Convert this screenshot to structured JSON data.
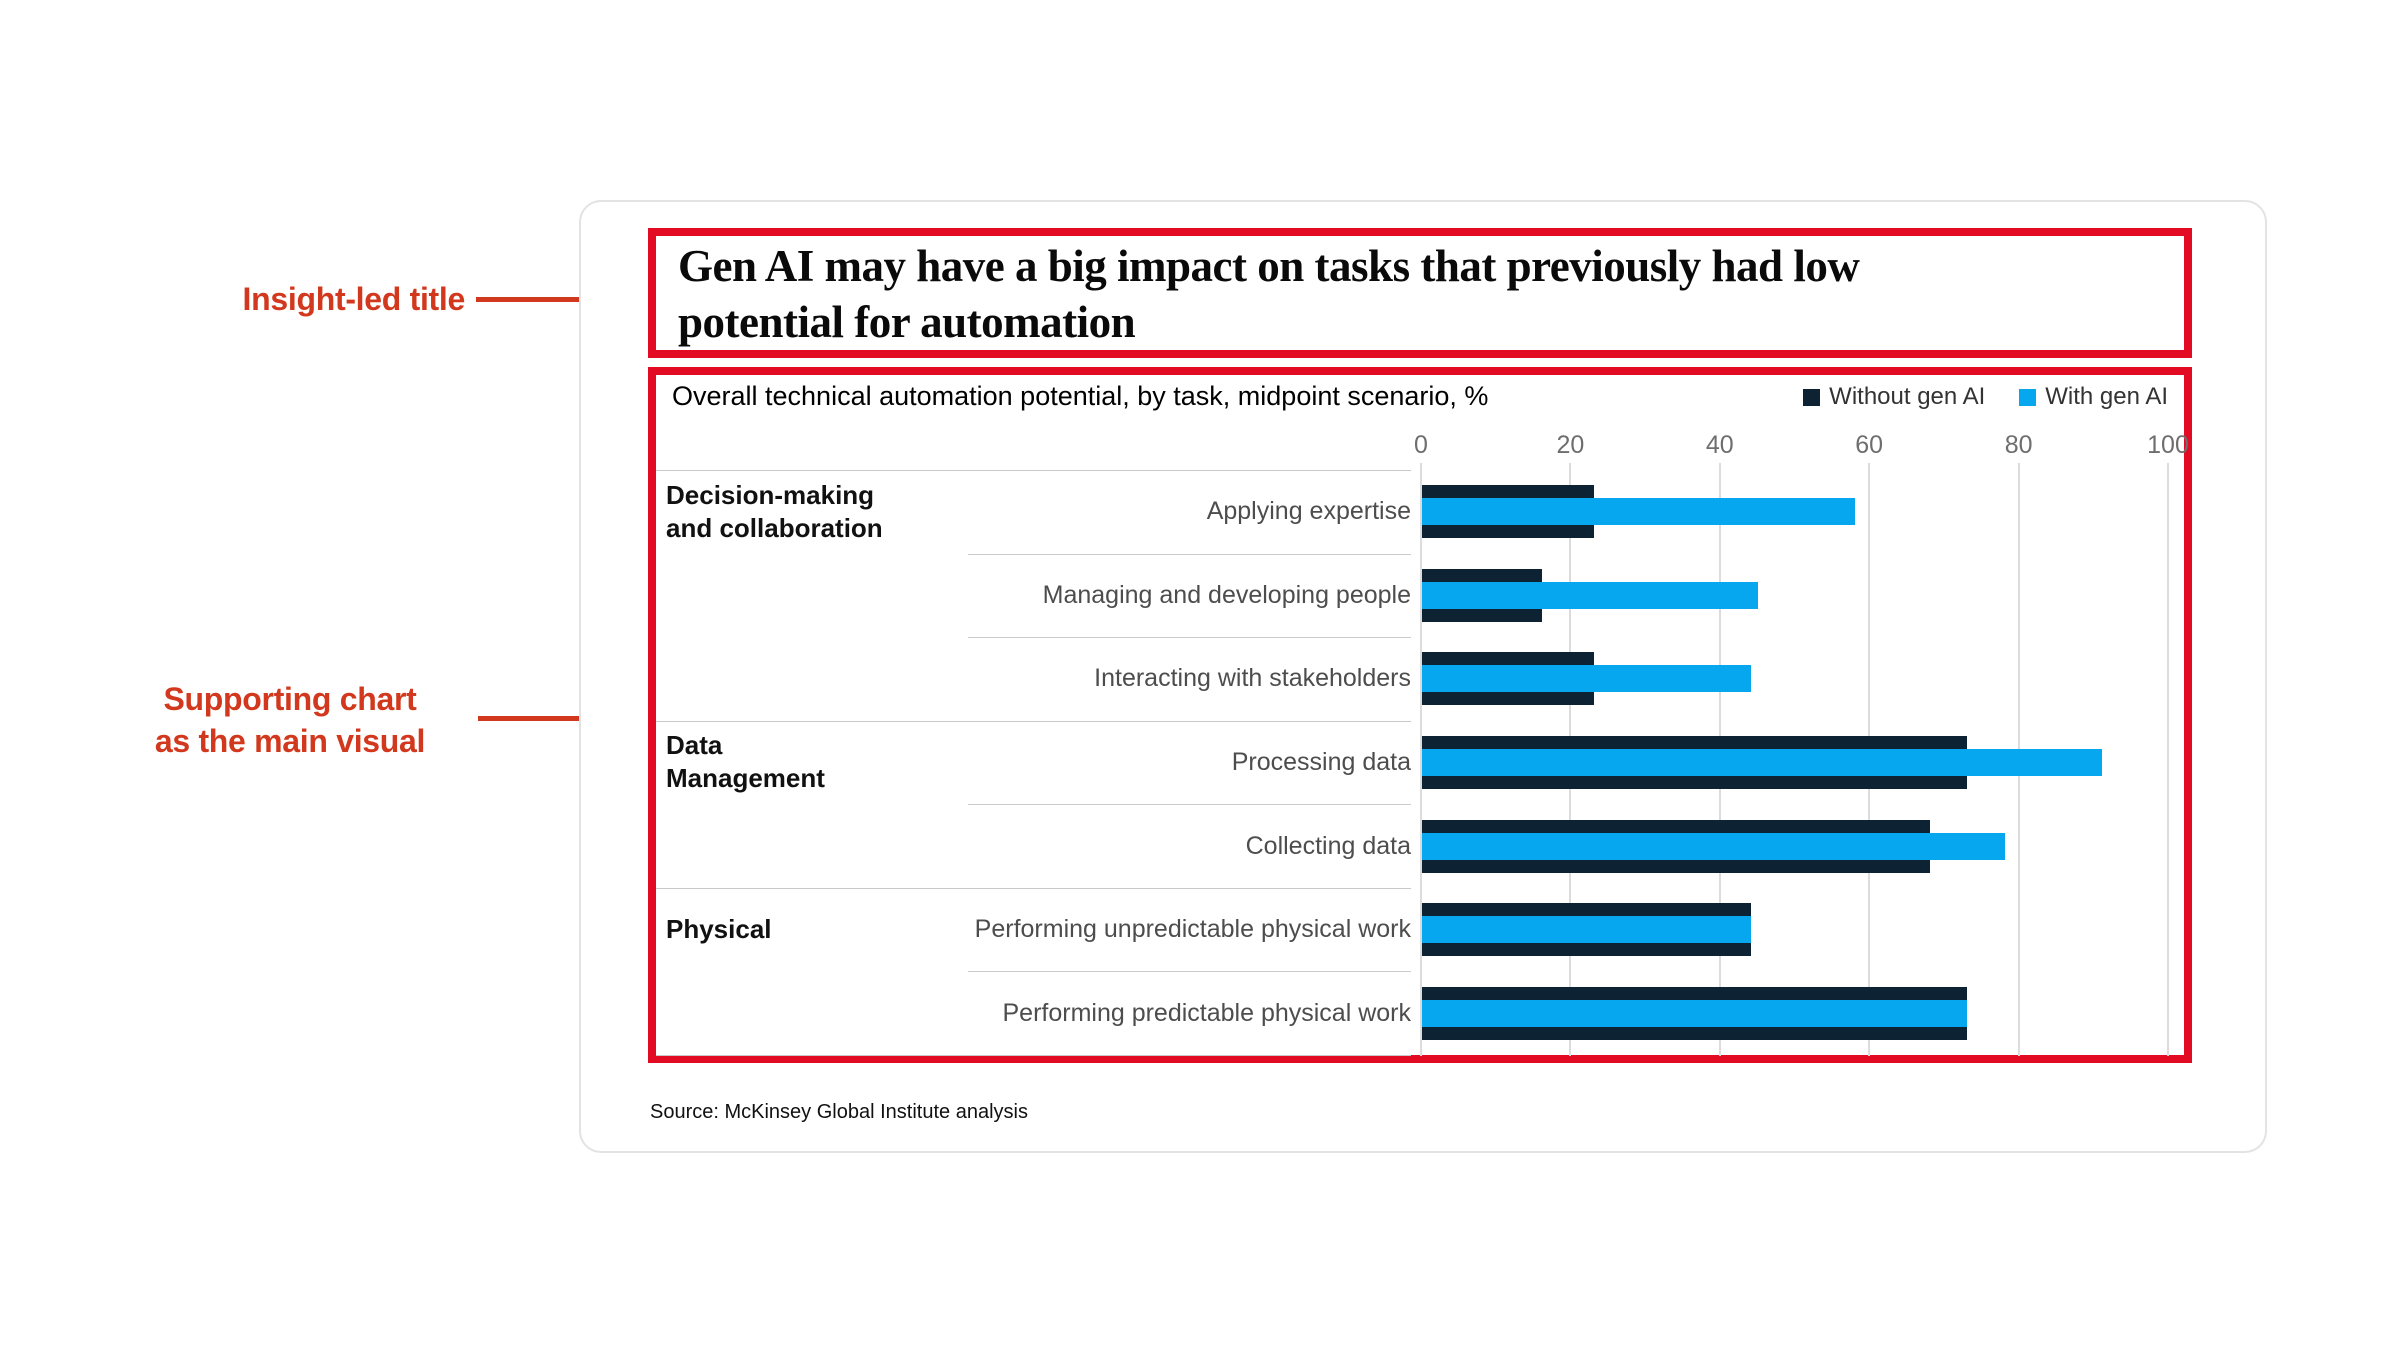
{
  "annotations": {
    "color": "#d2381d",
    "insight_callout": "Insight-led title",
    "chart_callout_line1": "Supporting chart",
    "chart_callout_line2": "as the main visual"
  },
  "slide": {
    "highlight_box_color": "#e30a23",
    "title_line1": "Gen AI may have a big impact on tasks that previously had low",
    "title_line2": "potential for automation",
    "source": "Source: McKinsey Global Institute analysis"
  },
  "chart_data": {
    "type": "bar",
    "orientation": "horizontal",
    "title": "Overall technical automation potential, by task, midpoint scenario, %",
    "xlim": [
      0,
      100
    ],
    "x_ticks": [
      0,
      20,
      40,
      60,
      80,
      100
    ],
    "grid": true,
    "legend_position": "top-right",
    "series": [
      {
        "name": "Without gen AI",
        "color": "#0d2232"
      },
      {
        "name": "With gen AI",
        "color": "#06a7ef"
      }
    ],
    "groups": [
      {
        "category": "Decision-making and collaboration",
        "category_lines": [
          "Decision-making",
          "and collaboration"
        ],
        "tasks": [
          {
            "label": "Applying expertise",
            "without_gen_ai": 23,
            "with_gen_ai": 58
          },
          {
            "label": "Managing and developing people",
            "without_gen_ai": 16,
            "with_gen_ai": 45
          },
          {
            "label": "Interacting with stakeholders",
            "without_gen_ai": 23,
            "with_gen_ai": 44
          }
        ]
      },
      {
        "category": "Data Management",
        "category_lines": [
          "Data",
          "Management"
        ],
        "tasks": [
          {
            "label": "Processing data",
            "without_gen_ai": 73,
            "with_gen_ai": 91
          },
          {
            "label": "Collecting data",
            "without_gen_ai": 68,
            "with_gen_ai": 78
          }
        ]
      },
      {
        "category": "Physical",
        "category_lines": [
          "Physical"
        ],
        "tasks": [
          {
            "label": "Performing unpredictable physical work",
            "without_gen_ai": 44,
            "with_gen_ai": 44
          },
          {
            "label": "Performing predictable physical work",
            "without_gen_ai": 73,
            "with_gen_ai": 73
          }
        ]
      }
    ]
  }
}
